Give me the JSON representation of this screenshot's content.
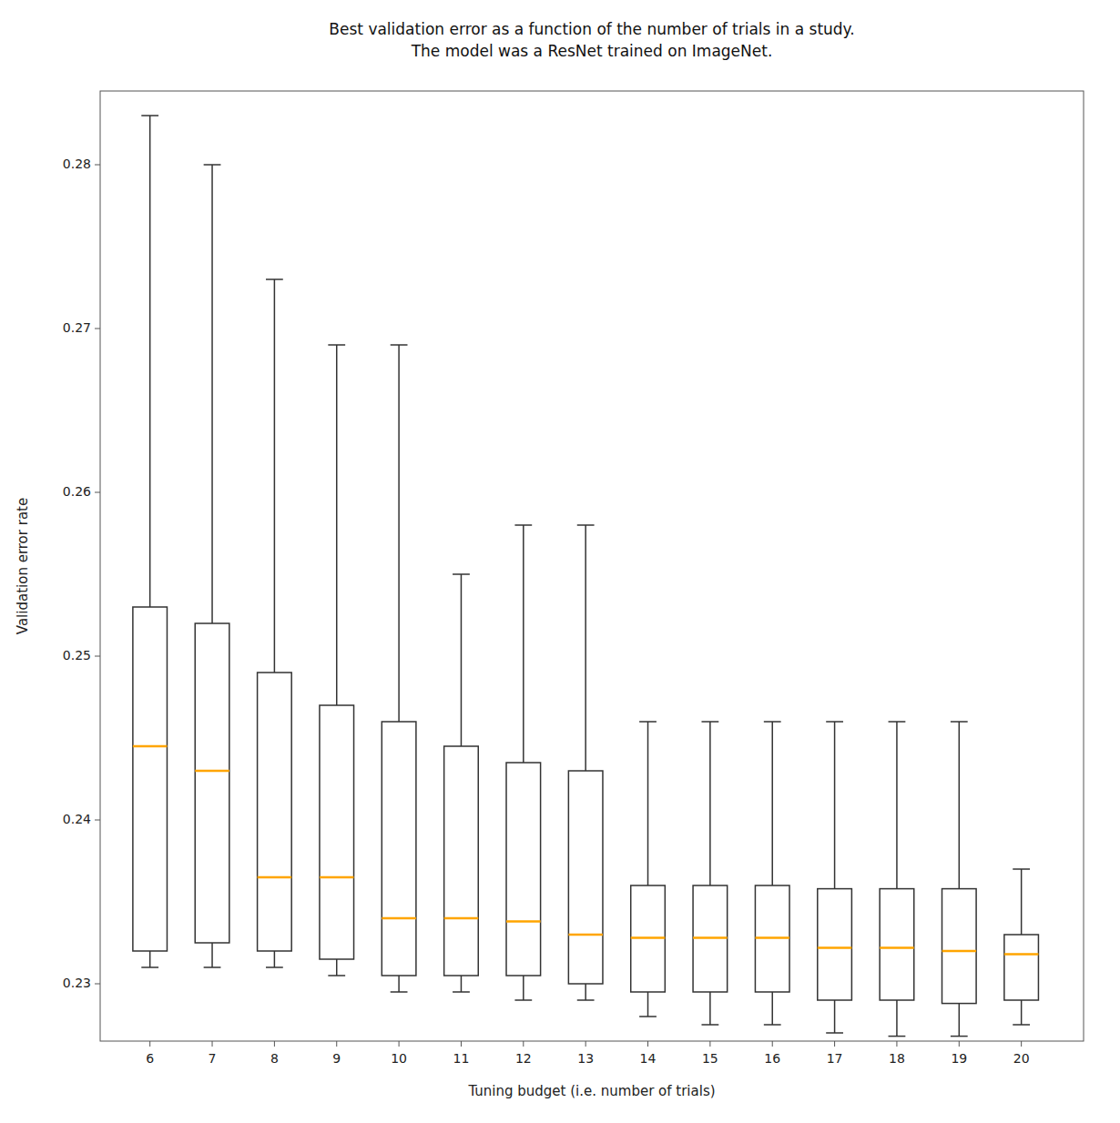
{
  "chart_data": {
    "type": "box",
    "title": "Best validation error as a function of the number of trials in a study.\nThe model was a ResNet trained on ImageNet.",
    "x_label": "Tuning budget (i.e. number of trials)",
    "y_label": "Validation error rate",
    "x": [
      6,
      7,
      8,
      9,
      10,
      11,
      12,
      13,
      14,
      15,
      16,
      17,
      18,
      19,
      20
    ],
    "boxes": [
      {
        "q1": 0.232,
        "median": 0.2445,
        "q3": 0.253,
        "whislo": 0.231,
        "whishi": 0.283
      },
      {
        "q1": 0.2325,
        "median": 0.243,
        "q3": 0.252,
        "whislo": 0.231,
        "whishi": 0.28
      },
      {
        "q1": 0.232,
        "median": 0.2365,
        "q3": 0.249,
        "whislo": 0.231,
        "whishi": 0.273
      },
      {
        "q1": 0.2315,
        "median": 0.2365,
        "q3": 0.247,
        "whislo": 0.2305,
        "whishi": 0.269
      },
      {
        "q1": 0.2305,
        "median": 0.234,
        "q3": 0.246,
        "whislo": 0.2295,
        "whishi": 0.269
      },
      {
        "q1": 0.2305,
        "median": 0.234,
        "q3": 0.2445,
        "whislo": 0.2295,
        "whishi": 0.255
      },
      {
        "q1": 0.2305,
        "median": 0.2338,
        "q3": 0.2435,
        "whislo": 0.229,
        "whishi": 0.258
      },
      {
        "q1": 0.23,
        "median": 0.233,
        "q3": 0.243,
        "whislo": 0.229,
        "whishi": 0.258
      },
      {
        "q1": 0.2295,
        "median": 0.2328,
        "q3": 0.236,
        "whislo": 0.228,
        "whishi": 0.246
      },
      {
        "q1": 0.2295,
        "median": 0.2328,
        "q3": 0.236,
        "whislo": 0.2275,
        "whishi": 0.246
      },
      {
        "q1": 0.2295,
        "median": 0.2328,
        "q3": 0.236,
        "whislo": 0.2275,
        "whishi": 0.246
      },
      {
        "q1": 0.229,
        "median": 0.2322,
        "q3": 0.2358,
        "whislo": 0.227,
        "whishi": 0.246
      },
      {
        "q1": 0.229,
        "median": 0.2322,
        "q3": 0.2358,
        "whislo": 0.2268,
        "whishi": 0.246
      },
      {
        "q1": 0.2288,
        "median": 0.232,
        "q3": 0.2358,
        "whislo": 0.2268,
        "whishi": 0.246
      },
      {
        "q1": 0.229,
        "median": 0.2318,
        "q3": 0.233,
        "whislo": 0.2275,
        "whishi": 0.237
      }
    ],
    "color": "orange",
    "xlim": [
      5.2,
      21.0
    ],
    "xticks": [
      6,
      7,
      8,
      9,
      10,
      11,
      12,
      13,
      14,
      15,
      16,
      17,
      18,
      19,
      20
    ],
    "ylim": [
      0.2265,
      0.2845
    ],
    "yticks": [
      0.23,
      0.24,
      0.25,
      0.26,
      0.27,
      0.28
    ],
    "grid": false
  }
}
